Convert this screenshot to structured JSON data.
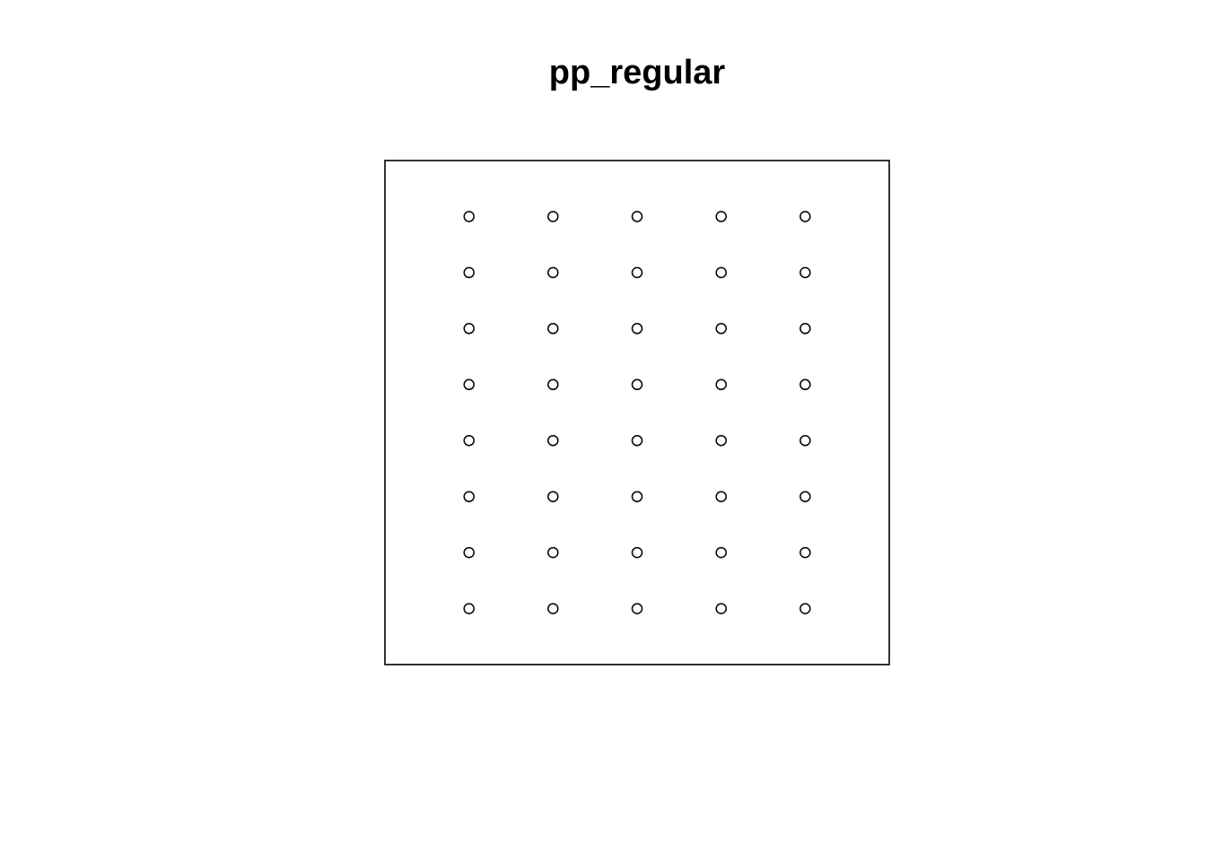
{
  "chart_data": {
    "type": "scatter",
    "title": "pp_regular",
    "xlabel": "",
    "ylabel": "",
    "xlim": [
      0,
      1
    ],
    "ylim": [
      0,
      1
    ],
    "grid": false,
    "axes_visible": false,
    "window_border": true,
    "marker": "open-circle",
    "colors": {
      "points": "#000000",
      "border": "#000000",
      "background": "#ffffff"
    },
    "x": [
      0.1667,
      0.3333,
      0.5,
      0.6667,
      0.8333,
      0.1667,
      0.3333,
      0.5,
      0.6667,
      0.8333,
      0.1667,
      0.3333,
      0.5,
      0.6667,
      0.8333,
      0.1667,
      0.3333,
      0.5,
      0.6667,
      0.8333,
      0.1667,
      0.3333,
      0.5,
      0.6667,
      0.8333,
      0.1667,
      0.3333,
      0.5,
      0.6667,
      0.8333,
      0.1667,
      0.3333,
      0.5,
      0.6667,
      0.8333,
      0.1667,
      0.3333,
      0.5,
      0.6667,
      0.8333
    ],
    "y": [
      0.8889,
      0.8889,
      0.8889,
      0.8889,
      0.8889,
      0.7778,
      0.7778,
      0.7778,
      0.7778,
      0.7778,
      0.6667,
      0.6667,
      0.6667,
      0.6667,
      0.6667,
      0.5556,
      0.5556,
      0.5556,
      0.5556,
      0.5556,
      0.4444,
      0.4444,
      0.4444,
      0.4444,
      0.4444,
      0.3333,
      0.3333,
      0.3333,
      0.3333,
      0.3333,
      0.2222,
      0.2222,
      0.2222,
      0.2222,
      0.2222,
      0.1111,
      0.1111,
      0.1111,
      0.1111,
      0.1111
    ]
  }
}
